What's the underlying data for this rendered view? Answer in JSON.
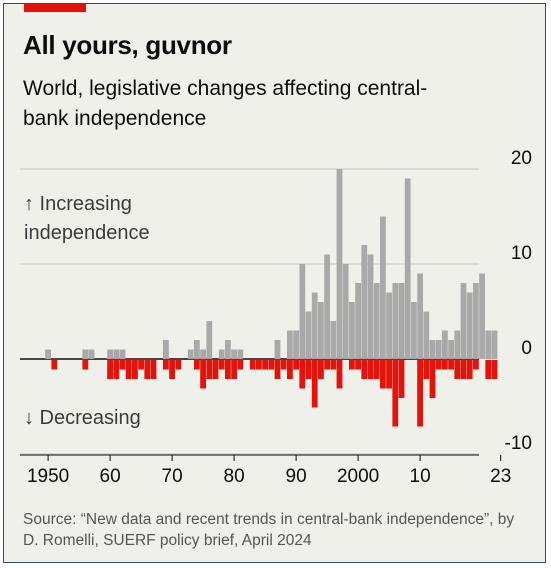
{
  "title": "All yours, guvnor",
  "subtitle": "World, legislative changes affecting central-bank independence",
  "annotations": {
    "increasing": "↑ Increasing independence",
    "decreasing": "↓ Decreasing"
  },
  "source": "Source: “New data and recent trends in central-bank independence”, by D. Romelli, SUERF policy brief, April 2024",
  "colors": {
    "increase": "#a9a9a9",
    "decrease": "#e3120b",
    "accent": "#e3120b",
    "background": "#f0f0ea"
  },
  "chart_data": {
    "type": "bar",
    "ylim": [
      -10,
      20
    ],
    "yticks": [
      {
        "value": 20,
        "label": "20"
      },
      {
        "value": 10,
        "label": "10"
      },
      {
        "value": 0,
        "label": "0"
      },
      {
        "value": -10,
        "label": "-10"
      }
    ],
    "xticks": [
      {
        "value": 1950,
        "label": "1950"
      },
      {
        "value": 1960,
        "label": "60"
      },
      {
        "value": 1970,
        "label": "70"
      },
      {
        "value": 1980,
        "label": "80"
      },
      {
        "value": 1990,
        "label": "90"
      },
      {
        "value": 2000,
        "label": "2000"
      },
      {
        "value": 2010,
        "label": "10"
      },
      {
        "value": 2023,
        "label": "23"
      }
    ],
    "grid": true,
    "series": [
      {
        "name": "Increasing",
        "x": [
          1950,
          1951,
          1952,
          1953,
          1954,
          1955,
          1956,
          1957,
          1958,
          1959,
          1960,
          1961,
          1962,
          1963,
          1964,
          1965,
          1966,
          1967,
          1968,
          1969,
          1970,
          1971,
          1972,
          1973,
          1974,
          1975,
          1976,
          1977,
          1978,
          1979,
          1980,
          1981,
          1982,
          1983,
          1984,
          1985,
          1986,
          1987,
          1988,
          1989,
          1990,
          1991,
          1992,
          1993,
          1994,
          1995,
          1996,
          1997,
          1998,
          1999,
          2000,
          2001,
          2002,
          2003,
          2004,
          2005,
          2006,
          2007,
          2008,
          2009,
          2010,
          2011,
          2012,
          2013,
          2014,
          2015,
          2016,
          2017,
          2018,
          2019,
          2020,
          2021,
          2022,
          2023
        ],
        "values": [
          1,
          0,
          0,
          0,
          0,
          0,
          1,
          1,
          0,
          0,
          1,
          1,
          1,
          0,
          0,
          0,
          0,
          0,
          0,
          2,
          0,
          0,
          0,
          1,
          2,
          1,
          4,
          0,
          1,
          2,
          1,
          1,
          0,
          0,
          0,
          0,
          0,
          2,
          0,
          3,
          3,
          10,
          5,
          7,
          6,
          11,
          4,
          20,
          10,
          6,
          8,
          12,
          11,
          8,
          15,
          7,
          8,
          8,
          19,
          6,
          9,
          5,
          2,
          2,
          3,
          2,
          3,
          8,
          7,
          8,
          9,
          3,
          3,
          0
        ],
        "color": "#a9a9a9"
      },
      {
        "name": "Decreasing",
        "x": [
          1950,
          1951,
          1952,
          1953,
          1954,
          1955,
          1956,
          1957,
          1958,
          1959,
          1960,
          1961,
          1962,
          1963,
          1964,
          1965,
          1966,
          1967,
          1968,
          1969,
          1970,
          1971,
          1972,
          1973,
          1974,
          1975,
          1976,
          1977,
          1978,
          1979,
          1980,
          1981,
          1982,
          1983,
          1984,
          1985,
          1986,
          1987,
          1988,
          1989,
          1990,
          1991,
          1992,
          1993,
          1994,
          1995,
          1996,
          1997,
          1998,
          1999,
          2000,
          2001,
          2002,
          2003,
          2004,
          2005,
          2006,
          2007,
          2008,
          2009,
          2010,
          2011,
          2012,
          2013,
          2014,
          2015,
          2016,
          2017,
          2018,
          2019,
          2020,
          2021,
          2022,
          2023
        ],
        "values": [
          0,
          -1,
          0,
          0,
          0,
          0,
          -1,
          0,
          0,
          0,
          -2,
          -2,
          -1,
          -2,
          -2,
          -1,
          -2,
          -2,
          0,
          -1,
          -2,
          -1,
          0,
          0,
          -1,
          -3,
          -2,
          -2,
          -1,
          -2,
          -2,
          -1,
          0,
          -1,
          -1,
          -1,
          -1,
          -2,
          -1,
          -2,
          -1,
          -3,
          -2,
          -5,
          -2,
          -1,
          -1,
          -3,
          0,
          -1,
          -1,
          -2,
          -2,
          -2,
          -3,
          -3,
          -7,
          -4,
          0,
          0,
          -7,
          -2,
          -4,
          -1,
          -1,
          -1,
          -2,
          -2,
          -2,
          -1,
          0,
          -2,
          -2,
          0
        ],
        "color": "#e3120b"
      }
    ]
  }
}
